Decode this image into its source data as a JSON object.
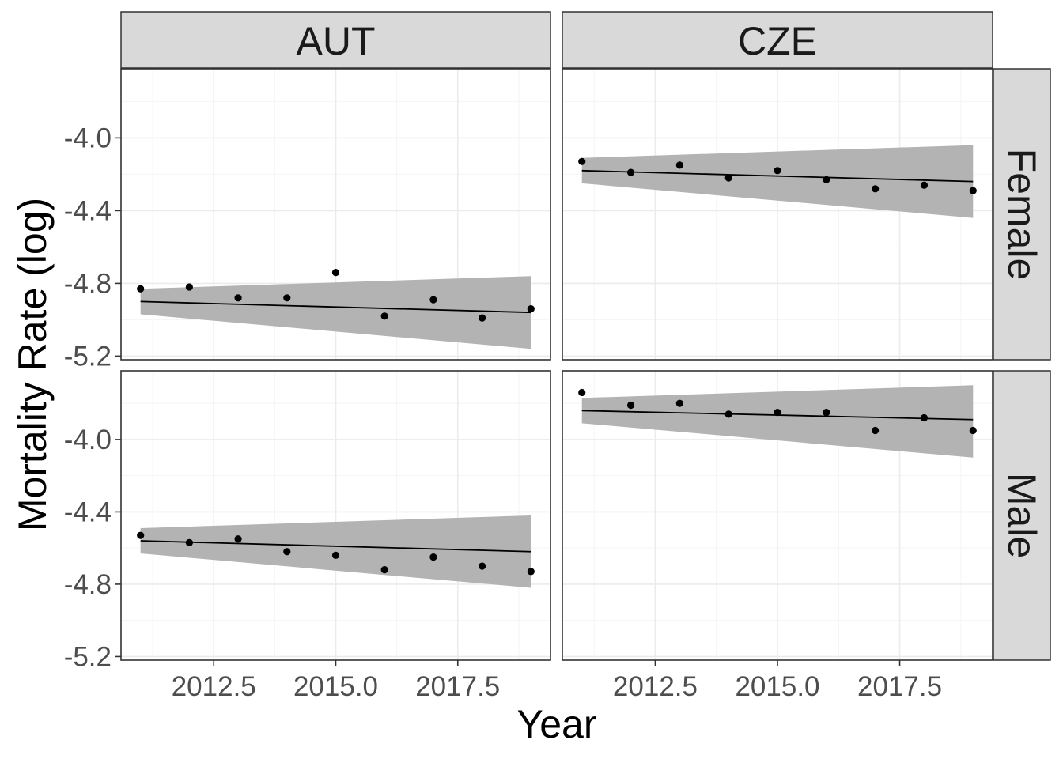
{
  "chart_data": {
    "type": "scatter",
    "xlabel": "Year",
    "ylabel": "Mortality Rate (log)",
    "col_facets": [
      "AUT",
      "CZE"
    ],
    "row_facets": [
      "Female",
      "Male"
    ],
    "xlim": [
      2010.6,
      2019.4
    ],
    "ylim": [
      -5.22,
      -3.62
    ],
    "x_ticks": [
      2012.5,
      2015.0,
      2017.5
    ],
    "x_tick_labels": [
      "2012.5",
      "2015.0",
      "2017.5"
    ],
    "y_ticks": [
      -4.0,
      -4.4,
      -4.8,
      -5.2
    ],
    "y_tick_labels": [
      "-4.0",
      "-4.4",
      "-4.8",
      "-5.2"
    ],
    "grid": true,
    "smoother": "linear fit with confidence band",
    "colors": {
      "points": "#000000",
      "band": "#b3b3b3",
      "strip_fill": "#d9d9d9",
      "grid": "#ebebeb"
    },
    "panels": [
      {
        "col": "AUT",
        "row": "Female",
        "points": {
          "x": [
            2011,
            2012,
            2013,
            2014,
            2015,
            2016,
            2017,
            2018,
            2019
          ],
          "y": [
            -4.83,
            -4.82,
            -4.88,
            -4.88,
            -4.74,
            -4.98,
            -4.89,
            -4.99,
            -4.94
          ]
        },
        "fit": {
          "x": [
            2011,
            2019
          ],
          "y": [
            -4.9,
            -4.96
          ]
        },
        "band": {
          "x": [
            2011,
            2019
          ],
          "lower": [
            -4.97,
            -5.16
          ],
          "upper": [
            -4.83,
            -4.76
          ]
        }
      },
      {
        "col": "CZE",
        "row": "Female",
        "points": {
          "x": [
            2011,
            2012,
            2013,
            2014,
            2015,
            2016,
            2017,
            2018,
            2019
          ],
          "y": [
            -4.13,
            -4.19,
            -4.15,
            -4.22,
            -4.18,
            -4.23,
            -4.28,
            -4.26,
            -4.29
          ]
        },
        "fit": {
          "x": [
            2011,
            2019
          ],
          "y": [
            -4.18,
            -4.24
          ]
        },
        "band": {
          "x": [
            2011,
            2019
          ],
          "lower": [
            -4.25,
            -4.44
          ],
          "upper": [
            -4.11,
            -4.04
          ]
        }
      },
      {
        "col": "AUT",
        "row": "Male",
        "points": {
          "x": [
            2011,
            2012,
            2013,
            2014,
            2015,
            2016,
            2017,
            2018,
            2019
          ],
          "y": [
            -4.53,
            -4.57,
            -4.55,
            -4.62,
            -4.64,
            -4.72,
            -4.65,
            -4.7,
            -4.73
          ]
        },
        "fit": {
          "x": [
            2011,
            2019
          ],
          "y": [
            -4.56,
            -4.62
          ]
        },
        "band": {
          "x": [
            2011,
            2019
          ],
          "lower": [
            -4.63,
            -4.82
          ],
          "upper": [
            -4.49,
            -4.42
          ]
        }
      },
      {
        "col": "CZE",
        "row": "Male",
        "points": {
          "x": [
            2011,
            2012,
            2013,
            2014,
            2015,
            2016,
            2017,
            2018,
            2019
          ],
          "y": [
            -3.74,
            -3.81,
            -3.8,
            -3.86,
            -3.85,
            -3.85,
            -3.95,
            -3.88,
            -3.95
          ]
        },
        "fit": {
          "x": [
            2011,
            2019
          ],
          "y": [
            -3.84,
            -3.89
          ]
        },
        "band": {
          "x": [
            2011,
            2019
          ],
          "lower": [
            -3.91,
            -4.1
          ],
          "upper": [
            -3.77,
            -3.7
          ]
        }
      }
    ]
  }
}
